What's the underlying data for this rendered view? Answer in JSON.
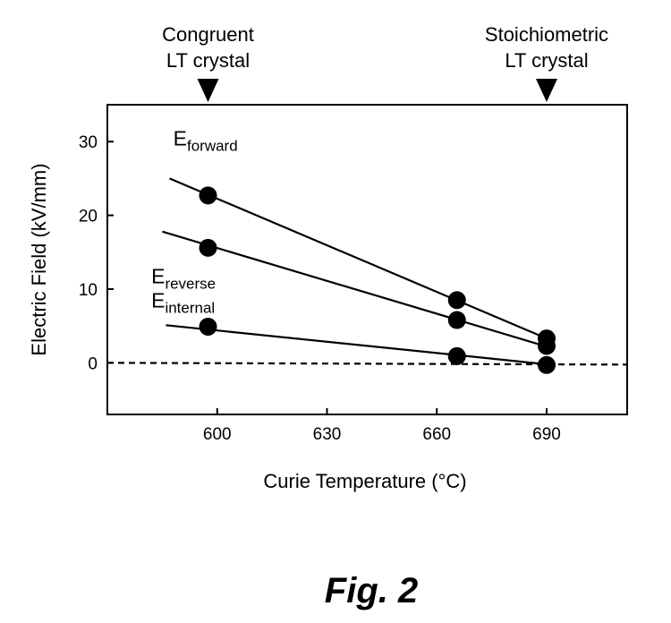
{
  "chart_data": {
    "type": "scatter",
    "xlabel": "Curie Temperature (°C)",
    "ylabel": "Electric Field (kV/mm)",
    "xlim": [
      570,
      712
    ],
    "ylim": [
      -7,
      35
    ],
    "xticks": [
      600,
      630,
      660,
      690
    ],
    "yticks": [
      0,
      10,
      20,
      30
    ],
    "grid": false,
    "series": [
      {
        "name": "E",
        "sub": "forward",
        "points": [
          [
            597.5,
            22.7
          ],
          [
            665.5,
            8.5
          ],
          [
            690,
            3.3
          ]
        ],
        "fit": [
          [
            587,
            25.0
          ],
          [
            690,
            3.3
          ]
        ],
        "label_at": [
          588,
          29.5
        ]
      },
      {
        "name": "E",
        "sub": "reverse",
        "points": [
          [
            597.5,
            15.6
          ],
          [
            665.5,
            5.8
          ],
          [
            690,
            2.3
          ]
        ],
        "fit": [
          [
            585,
            17.8
          ],
          [
            690,
            2.2
          ]
        ],
        "label_at": [
          582,
          10.8
        ]
      },
      {
        "name": "E",
        "sub": "internal",
        "points": [
          [
            597.5,
            4.9
          ],
          [
            665.5,
            0.9
          ],
          [
            690,
            -0.3
          ]
        ],
        "fit": [
          [
            586,
            5.1
          ],
          [
            690,
            -0.2
          ]
        ],
        "label_at": [
          582,
          7.5
        ]
      }
    ],
    "zero_line": {
      "y": 0,
      "style": "dashed"
    },
    "annotations": [
      {
        "line1": "Congruent",
        "line2": "LT crystal",
        "x": 597.5
      },
      {
        "line1": "Stoichiometric",
        "line2": "LT crystal",
        "x": 690
      }
    ]
  },
  "caption": "Fig. 2"
}
